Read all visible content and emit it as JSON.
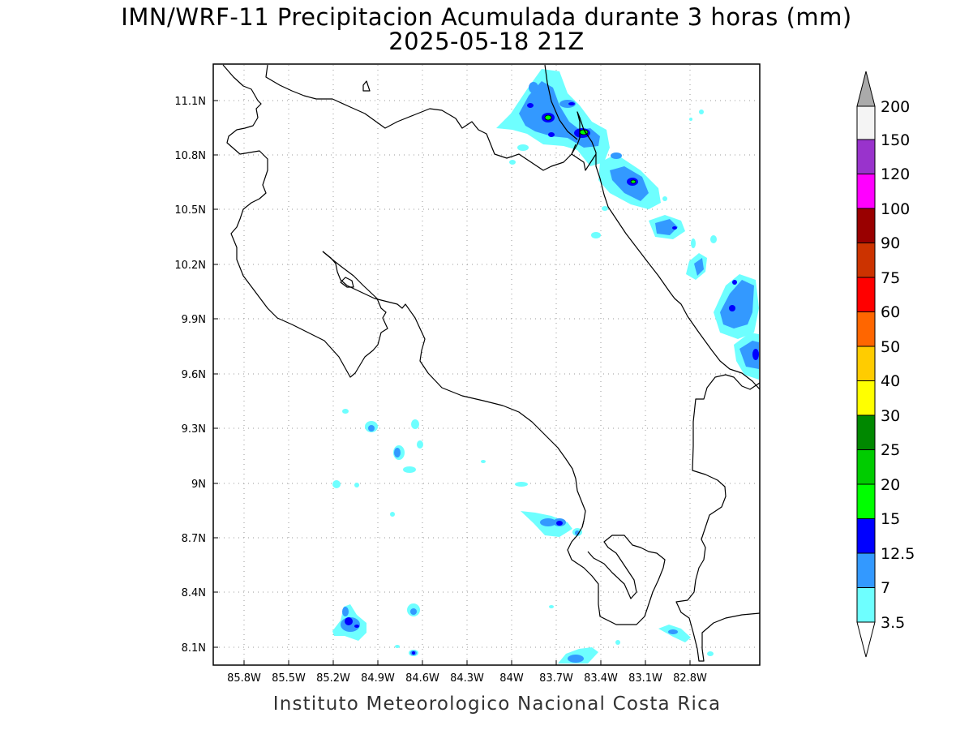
{
  "title": "IMN/WRF-11 Precipitacion Acumulada durante 3 horas (mm)",
  "subtitle": "2025-05-18 21Z",
  "footer": "Instituto Meteorologico Nacional Costa Rica",
  "lon_labels": [
    "85.8W",
    "85.5W",
    "85.2W",
    "84.9W",
    "84.6W",
    "84.3W",
    "84W",
    "83.7W",
    "83.4W",
    "83.1W",
    "82.8W"
  ],
  "lat_labels": [
    "11.1N",
    "10.8N",
    "10.5N",
    "10.2N",
    "9.9N",
    "9.6N",
    "9.3N",
    "9N",
    "8.7N",
    "8.4N",
    "8.1N"
  ],
  "colorbar": {
    "labels": [
      "3.5",
      "7",
      "12.5",
      "15",
      "20",
      "25",
      "30",
      "40",
      "50",
      "60",
      "75",
      "90",
      "100",
      "120",
      "150",
      "200"
    ],
    "colors": [
      "#6effff",
      "#3399ff",
      "#0000ff",
      "#00ff00",
      "#00cc00",
      "#008800",
      "#ffff00",
      "#ffcc00",
      "#ff6600",
      "#ff0000",
      "#cc3300",
      "#990000",
      "#ff00ff",
      "#9933cc",
      "#f4f4f4",
      "#aaaaaa"
    ]
  }
}
